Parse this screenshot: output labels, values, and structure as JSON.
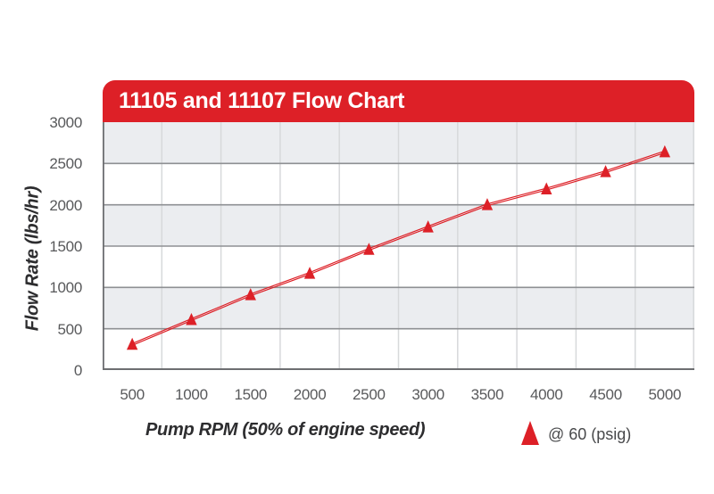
{
  "banner": {
    "title": "11105 and 11107 Flow Chart"
  },
  "colors": {
    "accent_red": "#dd2027",
    "band_gray": "#ebedf0",
    "grid_major": "#8e9093",
    "grid_minor": "#d7d9db",
    "axis": "#6d6e71",
    "tick_text": "#58595b",
    "label_text": "#2d2d2f"
  },
  "chart_data": {
    "type": "line",
    "title": "11105 and 11107 Flow Chart",
    "xlabel": "Pump RPM (50% of engine speed)",
    "ylabel": "Flow Rate (lbs/hr)",
    "x": [
      500,
      1000,
      1500,
      2000,
      2500,
      3000,
      3500,
      4000,
      4500,
      5000
    ],
    "series": [
      {
        "name": "@ 60 (psig)",
        "marker": "triangle-up",
        "values": [
          310,
          610,
          910,
          1170,
          1460,
          1730,
          2000,
          2190,
          2400,
          2640
        ]
      }
    ],
    "x_ticks": [
      "500",
      "1000",
      "1500",
      "2000",
      "2500",
      "3000",
      "3500",
      "4000",
      "4500",
      "5000"
    ],
    "y_ticks": [
      "0",
      "500",
      "1000",
      "1500",
      "2000",
      "2500",
      "3000"
    ],
    "ylim": [
      0,
      3000
    ],
    "xlim_categories": 10,
    "grid": "horizontal major lines, vertical minor lines, alternating gray bands",
    "legend": {
      "label": "@ 60 (psig)",
      "position": "bottom-right",
      "marker": "triangle-up"
    }
  }
}
